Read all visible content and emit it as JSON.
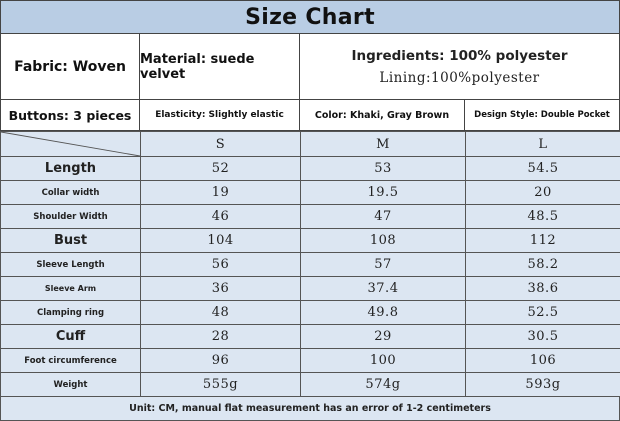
{
  "title": "Size Chart",
  "info": {
    "fabric": "Fabric: Woven",
    "material": "Material: suede velvet",
    "ingredients": "Ingredients: 100% polyester",
    "lining": "Lining:100%polyester",
    "buttons": "Buttons: 3 pieces",
    "elasticity": "Elasticity: Slightly elastic",
    "color": "Color: Khaki, Gray Brown",
    "design_style": "Design Style: Double Pocket"
  },
  "size_table": {
    "sizes": [
      "S",
      "M",
      "L"
    ],
    "rows": [
      {
        "label": "Length",
        "values": [
          "52",
          "53",
          "54.5"
        ]
      },
      {
        "label": "Collar width",
        "values": [
          "19",
          "19.5",
          "20"
        ]
      },
      {
        "label": "Shoulder Width",
        "values": [
          "46",
          "47",
          "48.5"
        ]
      },
      {
        "label": "Bust",
        "values": [
          "104",
          "108",
          "112"
        ]
      },
      {
        "label": "Sleeve Length",
        "values": [
          "56",
          "57",
          "58.2"
        ]
      },
      {
        "label": "Sleeve Arm",
        "values": [
          "36",
          "37.4",
          "38.6"
        ]
      },
      {
        "label": "Clamping ring",
        "values": [
          "48",
          "49.8",
          "52.5"
        ]
      },
      {
        "label": "Cuff",
        "values": [
          "28",
          "29",
          "30.5"
        ]
      },
      {
        "label": "Foot circumference",
        "values": [
          "96",
          "100",
          "106"
        ]
      },
      {
        "label": "Weight",
        "values": [
          "555g",
          "574g",
          "593g"
        ]
      }
    ]
  },
  "footer": "Unit: CM, manual flat measurement has an error of 1-2 centimeters"
}
